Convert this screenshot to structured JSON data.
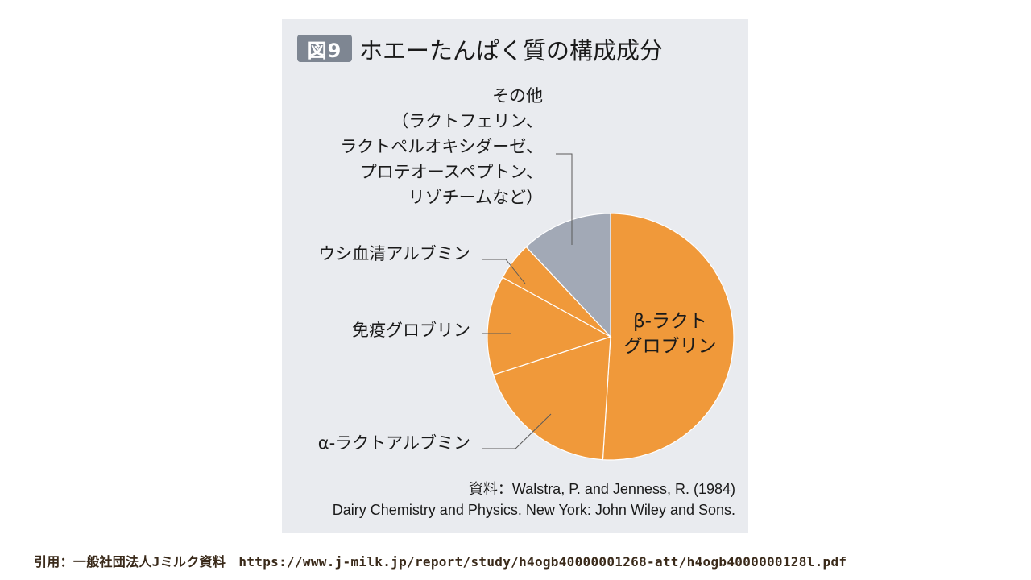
{
  "figure": {
    "badge": "図9",
    "title": "ホエーたんぱく質の構成成分"
  },
  "chart_data": {
    "type": "pie",
    "title": "ホエーたんぱく質の構成成分",
    "slices": [
      {
        "label": "β-ラクト\nグロブリン",
        "value": 51,
        "color": "#f0993a"
      },
      {
        "label": "α-ラクトアルブミン",
        "value": 19,
        "color": "#f0993a"
      },
      {
        "label": "免疫グロブリン",
        "value": 13,
        "color": "#f0993a"
      },
      {
        "label": "ウシ血清アルブミン",
        "value": 5,
        "color": "#f0993a"
      },
      {
        "label": "その他\n（ラクトフェリン、\nラクトペルオキシダーゼ、\nプロテオースペプトン、\nリゾチームなど）",
        "value": 12,
        "color": "#a2a9b6"
      }
    ],
    "start": "12 o'clock, clockwise",
    "stroke_color": "#ffffff"
  },
  "source": {
    "line1": "資料：Walstra, P. and Jenness, R. (1984)",
    "line2": "Dairy Chemistry and Physics. New York: John Wiley and Sons."
  },
  "citation": "引用：一般社団法人Jミルク資料　https://www.j-milk.jp/report/study/h4ogb40000001268-att/h4ogb4000000128l.pdf"
}
